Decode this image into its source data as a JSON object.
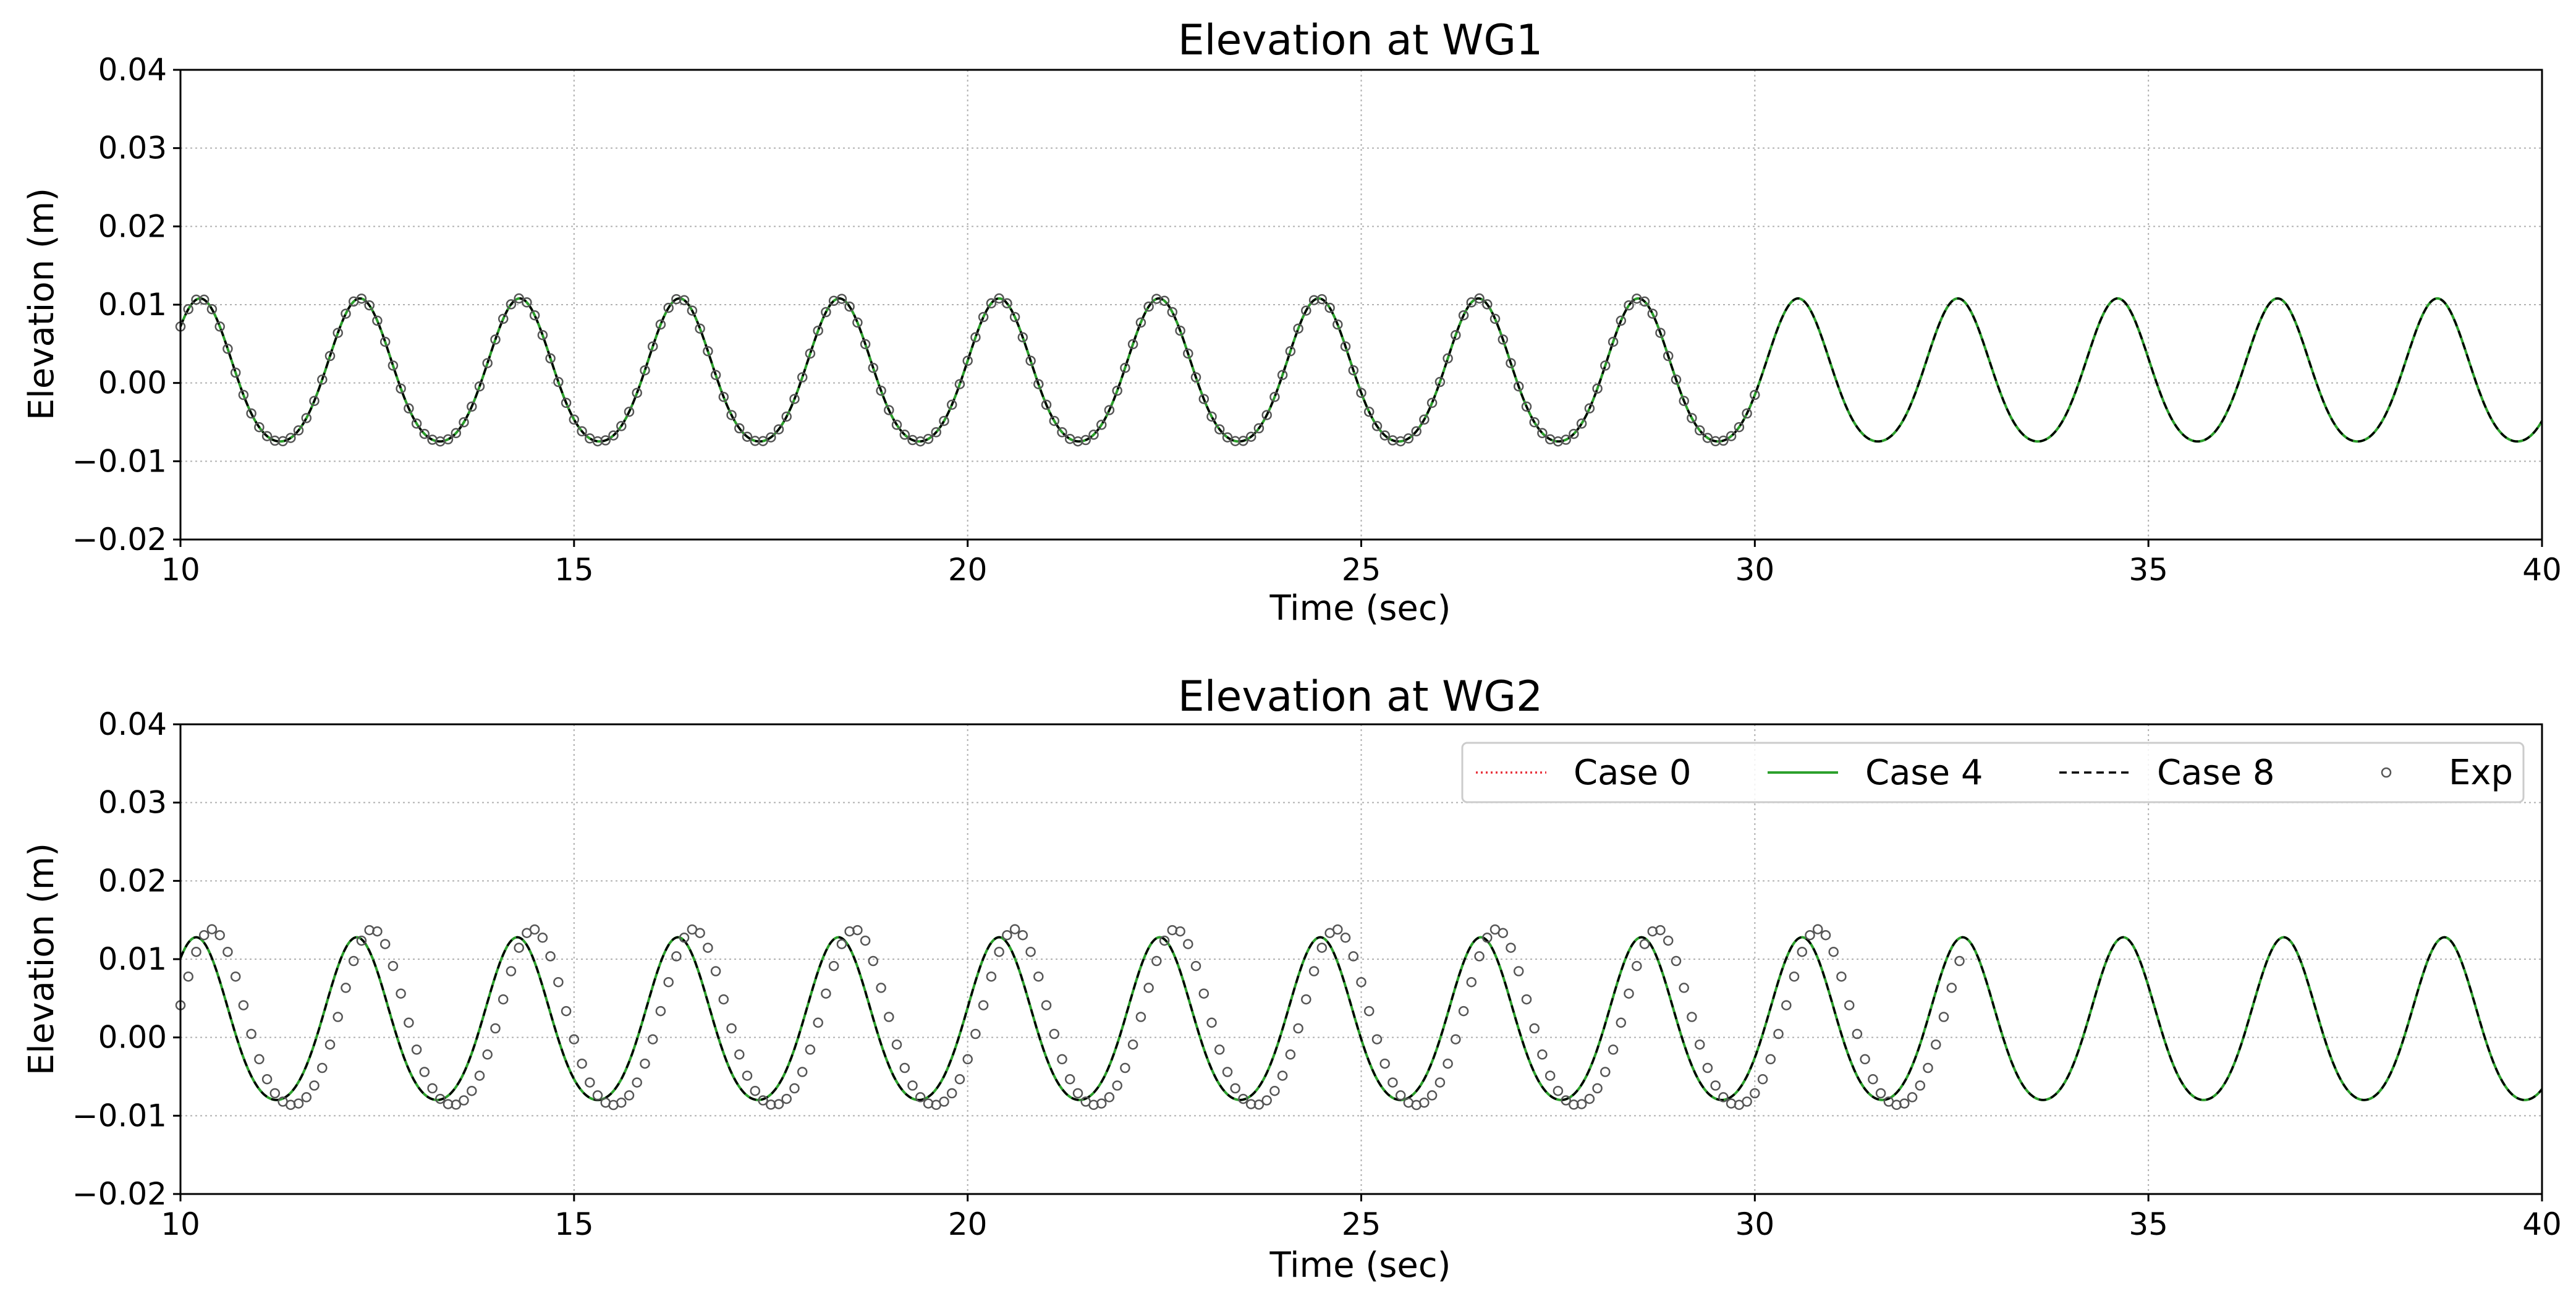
{
  "chart_data": [
    {
      "type": "line",
      "title": "Elevation at WG1",
      "xlabel": "Time (sec)",
      "ylabel": "Elevation (m)",
      "xlim": [
        10,
        40
      ],
      "ylim": [
        -0.02,
        0.04
      ],
      "xticks": [
        10,
        15,
        20,
        25,
        30,
        35,
        40
      ],
      "xtick_labels": [
        "10",
        "15",
        "20",
        "25",
        "30",
        "35",
        "40"
      ],
      "yticks": [
        -0.02,
        -0.01,
        0.0,
        0.01,
        0.02,
        0.03,
        0.04
      ],
      "ytick_labels": [
        "−0.02",
        "−0.01",
        "0.00",
        "0.01",
        "0.02",
        "0.03",
        "0.04"
      ],
      "grid": true,
      "legend": false,
      "model": {
        "period_s": 2.03,
        "crest_m": 0.0108,
        "trough_m": -0.0095,
        "first_crest_s": 10.25
      },
      "series": [
        {
          "name": "Case 0",
          "style": "dotted",
          "color": "#e8303a",
          "x_range": [
            10,
            40
          ]
        },
        {
          "name": "Case 4",
          "style": "solid",
          "color": "#2ca02c",
          "x_range": [
            10,
            40
          ]
        },
        {
          "name": "Case 8",
          "style": "dashed",
          "color": "#000000",
          "x_range": [
            10,
            40
          ]
        },
        {
          "name": "Exp",
          "style": "markers",
          "color": "#555555",
          "x_range": [
            10,
            30
          ],
          "phase_lag_s": 0.0,
          "amp_scale": 1.0
        }
      ]
    },
    {
      "type": "line",
      "title": "Elevation at WG2",
      "xlabel": "Time (sec)",
      "ylabel": "Elevation (m)",
      "xlim": [
        10,
        40
      ],
      "ylim": [
        -0.02,
        0.04
      ],
      "xticks": [
        10,
        15,
        20,
        25,
        30,
        35,
        40
      ],
      "xtick_labels": [
        "10",
        "15",
        "20",
        "25",
        "30",
        "35",
        "40"
      ],
      "yticks": [
        -0.02,
        -0.01,
        0.0,
        0.01,
        0.02,
        0.03,
        0.04
      ],
      "ytick_labels": [
        "−0.02",
        "−0.01",
        "0.00",
        "0.01",
        "0.02",
        "0.03",
        "0.04"
      ],
      "grid": true,
      "legend": true,
      "legend_position": "top-right",
      "model": {
        "period_s": 2.04,
        "crest_m": 0.0128,
        "trough_m": -0.0103,
        "first_crest_s": 10.2
      },
      "series": [
        {
          "name": "Case 0",
          "style": "dotted",
          "color": "#e8303a",
          "x_range": [
            10,
            40
          ]
        },
        {
          "name": "Case 4",
          "style": "solid",
          "color": "#2ca02c",
          "x_range": [
            10,
            40
          ]
        },
        {
          "name": "Case 8",
          "style": "dashed",
          "color": "#000000",
          "x_range": [
            10,
            40
          ]
        },
        {
          "name": "Exp",
          "style": "markers",
          "color": "#555555",
          "x_range": [
            10,
            32.6
          ],
          "phase_lag_s": 0.2,
          "amp_scale": 1.08
        }
      ]
    }
  ]
}
